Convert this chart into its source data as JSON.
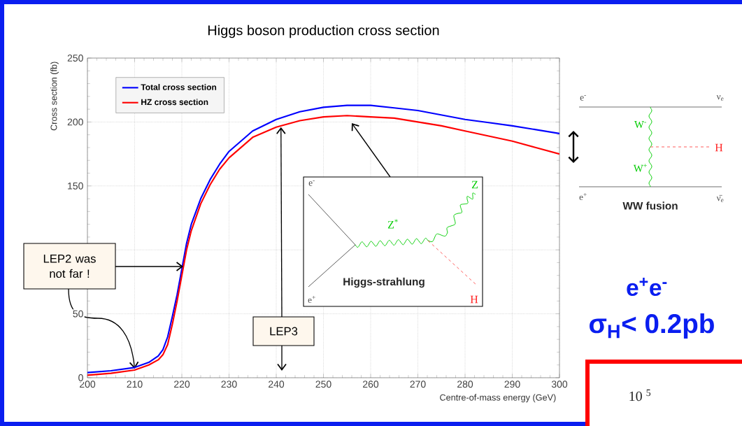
{
  "chart_data": {
    "type": "line",
    "title": "Higgs boson production cross section",
    "xlabel": "Centre-of-mass energy (GeV)",
    "ylabel": "Cross section (fb)",
    "xlim": [
      200,
      300
    ],
    "ylim": [
      0,
      250
    ],
    "xticks": [
      200,
      210,
      220,
      230,
      240,
      250,
      260,
      270,
      280,
      290,
      300
    ],
    "yticks": [
      0,
      50,
      {
        "value": 100,
        "label": null
      },
      150,
      200,
      250
    ],
    "grid": true,
    "legend": "top left",
    "series": [
      {
        "name": "Total cross section",
        "color": "#0000ff",
        "x": [
          200,
          205,
          210,
          213,
          215,
          216,
          217,
          218,
          219,
          220,
          221,
          222,
          224,
          226,
          228,
          230,
          235,
          240,
          245,
          250,
          255,
          260,
          265,
          270,
          275,
          280,
          285,
          290,
          295,
          300
        ],
        "values": [
          4,
          5.5,
          8,
          12,
          17,
          22,
          32,
          48,
          65,
          85,
          105,
          120,
          140,
          155,
          167,
          177,
          193,
          202,
          208,
          211.5,
          213,
          213,
          211,
          209,
          205.5,
          202,
          199.5,
          197,
          194,
          191
        ]
      },
      {
        "name": "HZ cross section",
        "color": "#ff0000",
        "x": [
          200,
          205,
          210,
          213,
          215,
          216,
          217,
          218,
          219,
          220,
          221,
          222,
          224,
          226,
          228,
          230,
          235,
          240,
          245,
          250,
          255,
          260,
          265,
          270,
          275,
          280,
          285,
          290,
          295,
          300
        ],
        "values": [
          2,
          3.5,
          6,
          10,
          14,
          18,
          26,
          42,
          60,
          80,
          100,
          115,
          136,
          151,
          163,
          172,
          188,
          196,
          201,
          204,
          205,
          204,
          203,
          200,
          197,
          193,
          189,
          185,
          180,
          175
        ]
      }
    ],
    "annotations": [
      {
        "text": "LEP2 was not far !",
        "x": 210,
        "y": 7
      },
      {
        "text": "LEP3",
        "x": 241,
        "y": 196
      },
      "Higgs-strahlung",
      "e$^{-}$",
      "e$^{+}$",
      "Z$^{*}$",
      "Z",
      "H",
      "WW fusion",
      "e$^{-}$",
      "e$^{+}$",
      "W$^{-}$",
      "W$^{+}$",
      "H",
      "ν$_{e}$",
      "ν̄$_{e}$",
      "e$^{+}$e$^{-}$",
      "σ$_{H}$< 0.2pb",
      "10 $^{5}$"
    ]
  }
}
